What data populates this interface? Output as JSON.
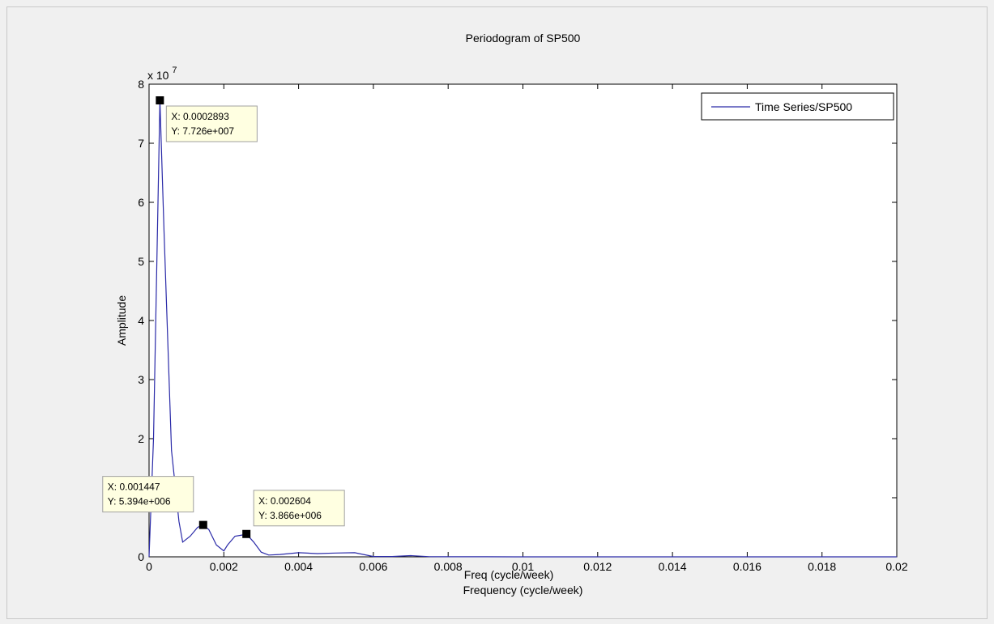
{
  "chart_data": {
    "type": "line",
    "title": "Periodogram of SP500",
    "xlabel": "Frequency (cycle/week)",
    "xlabel_overlap": "Freq (cycle/week)",
    "ylabel": "Amplitude",
    "y_exponent_label": "x 10",
    "y_exponent_power": "7",
    "xlim": [
      0,
      0.02
    ],
    "ylim": [
      0,
      80000000
    ],
    "y_scale_factor": 10000000,
    "grid": false,
    "x_ticks": [
      0,
      0.002,
      0.004,
      0.006,
      0.008,
      0.01,
      0.012,
      0.014,
      0.016,
      0.018,
      0.02
    ],
    "x_tick_labels": [
      "0",
      "0.002",
      "0.004",
      "0.006",
      "0.008",
      "0.01",
      "0.012",
      "0.014",
      "0.016",
      "0.018",
      "0.02"
    ],
    "y_ticks": [
      0,
      10000000,
      20000000,
      30000000,
      40000000,
      50000000,
      60000000,
      70000000,
      80000000
    ],
    "y_tick_labels": [
      "0",
      "1",
      "2",
      "3",
      "4",
      "5",
      "6",
      "7",
      "8"
    ],
    "legend_position": "top-right",
    "line_color": "#2a2aa8",
    "series": [
      {
        "name": "Time Series/SP500",
        "x": [
          0,
          0.00012,
          0.0002893,
          0.0004,
          0.0006,
          0.0008,
          0.0009,
          0.0011,
          0.0013,
          0.001447,
          0.0016,
          0.0018,
          0.002,
          0.0021,
          0.0023,
          0.0025,
          0.002604,
          0.0028,
          0.003,
          0.0032,
          0.0035,
          0.004,
          0.0045,
          0.005,
          0.0055,
          0.006,
          0.0065,
          0.007,
          0.0075,
          0.008,
          0.009,
          0.01,
          0.012,
          0.014,
          0.016,
          0.018,
          0.02
        ],
        "y": [
          0,
          20000000,
          77260000,
          55000000,
          18000000,
          6000000,
          2500000,
          3500000,
          5000000,
          5394000,
          4600000,
          2000000,
          1000000,
          2000000,
          3500000,
          3700000,
          3866000,
          2500000,
          800000,
          300000,
          400000,
          700000,
          550000,
          650000,
          700000,
          50000,
          50000,
          200000,
          30000,
          20000,
          10000,
          5000,
          5000,
          5000,
          5000,
          5000,
          5000
        ]
      }
    ],
    "datatips": [
      {
        "x": 0.0002893,
        "y": 77260000,
        "x_label": "X: 0.0002893",
        "y_label": "Y: 7.726e+007",
        "placement": "right-below"
      },
      {
        "x": 0.001447,
        "y": 5394000,
        "x_label": "X: 0.001447",
        "y_label": "Y: 5.394e+006",
        "placement": "left-above"
      },
      {
        "x": 0.002604,
        "y": 3866000,
        "x_label": "X: 0.002604",
        "y_label": "Y: 3.866e+006",
        "placement": "right-above"
      }
    ]
  }
}
